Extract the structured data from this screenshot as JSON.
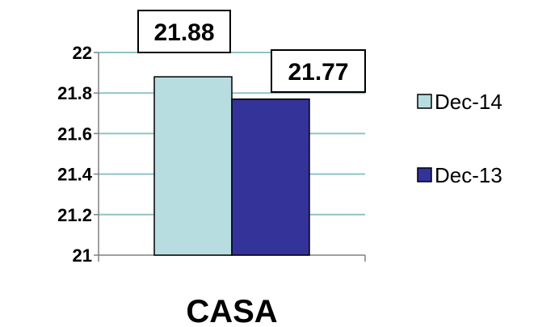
{
  "chart_data": {
    "type": "bar",
    "categories": [
      "CASA"
    ],
    "series": [
      {
        "name": "Dec-14",
        "values": [
          21.88
        ],
        "color": "#b7dde0"
      },
      {
        "name": "Dec-13",
        "values": [
          21.77
        ],
        "color": "#333399"
      }
    ],
    "ylim": [
      21,
      22
    ],
    "yticks": [
      "21",
      "21.2",
      "21.4",
      "21.6",
      "21.8",
      "22"
    ],
    "data_labels": [
      "21.88",
      "21.77"
    ],
    "title": "",
    "xlabel": "",
    "ylabel": "",
    "grid": true,
    "gridline_color": "#8fc3c4",
    "legend_position": "right"
  }
}
